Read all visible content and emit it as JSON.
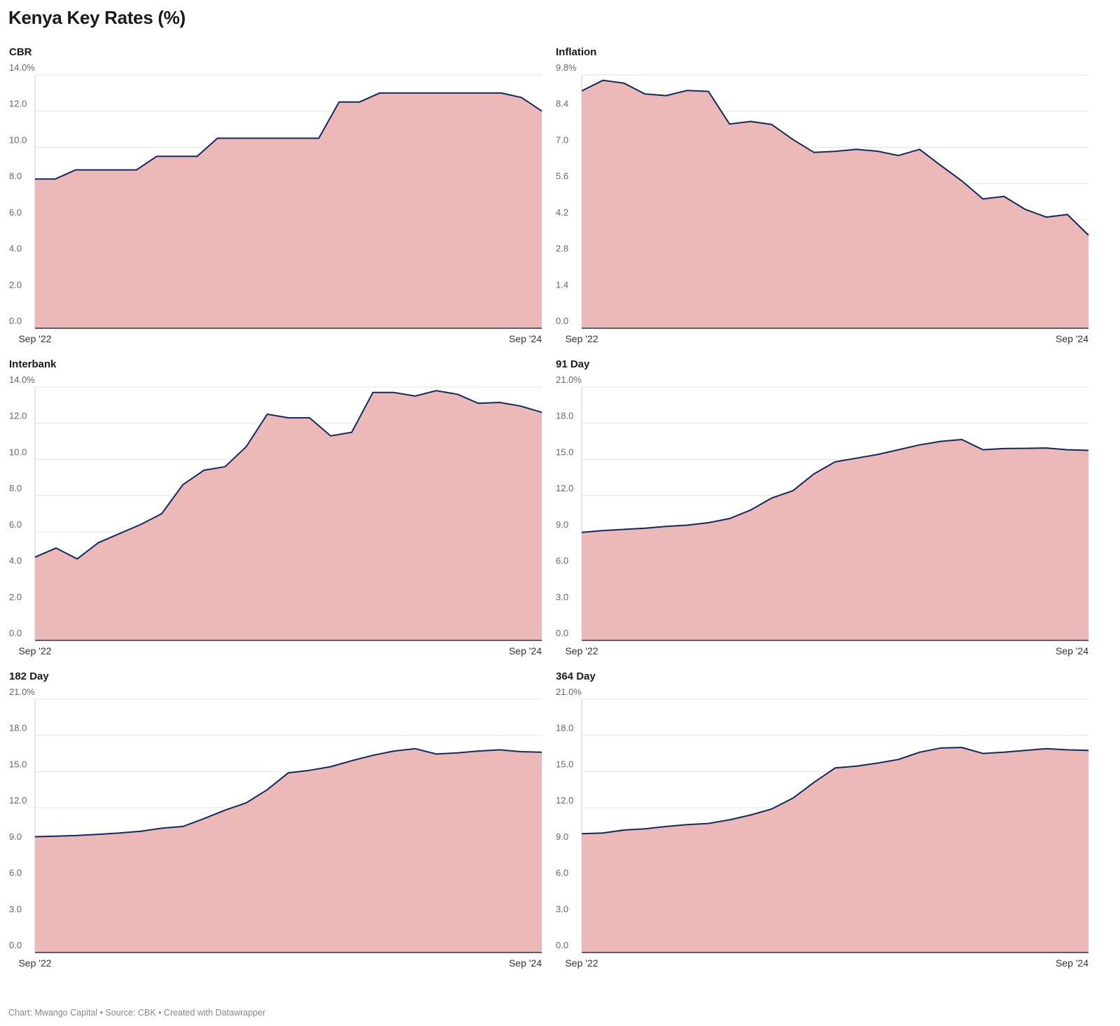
{
  "title": "Kenya Key Rates (%)",
  "footer": "Chart: Mwango Capital • Source: CBK • Created with Datawrapper",
  "colors": {
    "area": "#edb8b8",
    "line": "#0f2a5e"
  },
  "chart_data": [
    {
      "type": "area",
      "title": "CBR",
      "x_start_label": "Sep '22",
      "x_end_label": "Sep '24",
      "ylim": [
        0,
        14
      ],
      "y_ticks": [
        "14.0%",
        "12.0",
        "10.0",
        "8.0",
        "6.0",
        "4.0",
        "2.0",
        "0.0"
      ],
      "values": [
        8.25,
        8.25,
        8.75,
        8.75,
        8.75,
        8.75,
        9.5,
        9.5,
        9.5,
        10.5,
        10.5,
        10.5,
        10.5,
        10.5,
        10.5,
        12.5,
        12.5,
        13.0,
        13.0,
        13.0,
        13.0,
        13.0,
        13.0,
        13.0,
        12.75,
        12.0
      ]
    },
    {
      "type": "area",
      "title": "Inflation",
      "x_start_label": "Sep '22",
      "x_end_label": "Sep '24",
      "ylim": [
        0,
        9.8
      ],
      "y_ticks": [
        "9.8%",
        "8.4",
        "7.0",
        "5.6",
        "4.2",
        "2.8",
        "1.4",
        "0.0"
      ],
      "values": [
        9.18,
        9.59,
        9.48,
        9.06,
        9.0,
        9.2,
        9.16,
        7.9,
        8.0,
        7.88,
        7.3,
        6.8,
        6.84,
        6.92,
        6.85,
        6.68,
        6.92,
        6.3,
        5.7,
        5.0,
        5.1,
        4.6,
        4.3,
        4.4,
        3.6
      ]
    },
    {
      "type": "area",
      "title": "Interbank",
      "x_start_label": "Sep '22",
      "x_end_label": "Sep '24",
      "ylim": [
        0,
        14
      ],
      "y_ticks": [
        "14.0%",
        "12.0",
        "10.0",
        "8.0",
        "6.0",
        "4.0",
        "2.0",
        "0.0"
      ],
      "values": [
        4.6,
        5.1,
        4.5,
        5.4,
        5.9,
        6.4,
        7.0,
        8.6,
        9.4,
        9.6,
        10.7,
        12.5,
        12.3,
        12.3,
        11.3,
        11.5,
        13.7,
        13.7,
        13.5,
        13.8,
        13.6,
        13.1,
        13.15,
        12.95,
        12.6
      ]
    },
    {
      "type": "area",
      "title": "91 Day",
      "x_start_label": "Sep '22",
      "x_end_label": "Sep '24",
      "ylim": [
        0,
        21
      ],
      "y_ticks": [
        "21.0%",
        "18.0",
        "15.0",
        "12.0",
        "9.0",
        "6.0",
        "3.0",
        "0.0"
      ],
      "values": [
        8.95,
        9.1,
        9.2,
        9.3,
        9.45,
        9.55,
        9.75,
        10.1,
        10.8,
        11.8,
        12.4,
        13.8,
        14.8,
        15.1,
        15.4,
        15.8,
        16.2,
        16.5,
        16.65,
        15.8,
        15.9,
        15.92,
        15.95,
        15.8,
        15.75
      ]
    },
    {
      "type": "area",
      "title": "182 Day",
      "x_start_label": "Sep '22",
      "x_end_label": "Sep '24",
      "ylim": [
        0,
        21
      ],
      "y_ticks": [
        "21.0%",
        "18.0",
        "15.0",
        "12.0",
        "9.0",
        "6.0",
        "3.0",
        "0.0"
      ],
      "values": [
        9.6,
        9.65,
        9.7,
        9.8,
        9.9,
        10.05,
        10.3,
        10.45,
        11.1,
        11.8,
        12.4,
        13.5,
        14.9,
        15.1,
        15.4,
        15.9,
        16.35,
        16.7,
        16.9,
        16.45,
        16.55,
        16.7,
        16.8,
        16.65,
        16.6
      ]
    },
    {
      "type": "area",
      "title": "364 Day",
      "x_start_label": "Sep '22",
      "x_end_label": "Sep '24",
      "ylim": [
        0,
        21
      ],
      "y_ticks": [
        "21.0%",
        "18.0",
        "15.0",
        "12.0",
        "9.0",
        "6.0",
        "3.0",
        "0.0"
      ],
      "values": [
        9.85,
        9.9,
        10.15,
        10.25,
        10.45,
        10.6,
        10.7,
        11.0,
        11.4,
        11.9,
        12.8,
        14.1,
        15.3,
        15.45,
        15.7,
        16.0,
        16.6,
        16.95,
        17.0,
        16.5,
        16.6,
        16.75,
        16.9,
        16.8,
        16.75
      ]
    }
  ]
}
